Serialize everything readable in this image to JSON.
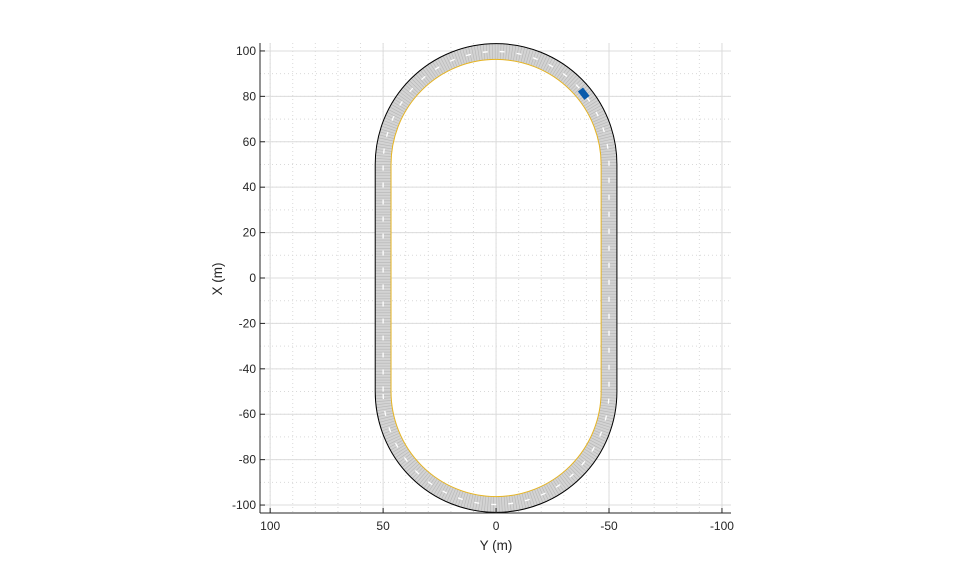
{
  "chart_data": {
    "type": "line",
    "title": "",
    "xlabel": "Y (m)",
    "ylabel": "X (m)",
    "xlim": [
      104.5,
      -104
    ],
    "ylim": [
      -103.5,
      103.5
    ],
    "x_reversed": true,
    "xticks": [
      100,
      50,
      0,
      -50,
      -100
    ],
    "yticks": [
      100,
      80,
      60,
      40,
      20,
      0,
      -20,
      -40,
      -60,
      -80,
      -100
    ],
    "grid": true,
    "minor_grid": true,
    "road": {
      "shape": "stadium track",
      "straight_offset_Y": 50,
      "straight_X_range": [
        -50,
        50
      ],
      "curve_radius": 50,
      "curve_centers_X": [
        50,
        -50
      ],
      "width": 7,
      "color": "#d3d3d3",
      "inner_edge_color": "#e6b422",
      "outer_edge_color": "#000000",
      "lane_marking_color": "#ffffff"
    },
    "vehicle": {
      "X": 81.2,
      "Y": -38.8,
      "length": 4.7,
      "width": 1.8,
      "color": "#0a5bab"
    }
  }
}
